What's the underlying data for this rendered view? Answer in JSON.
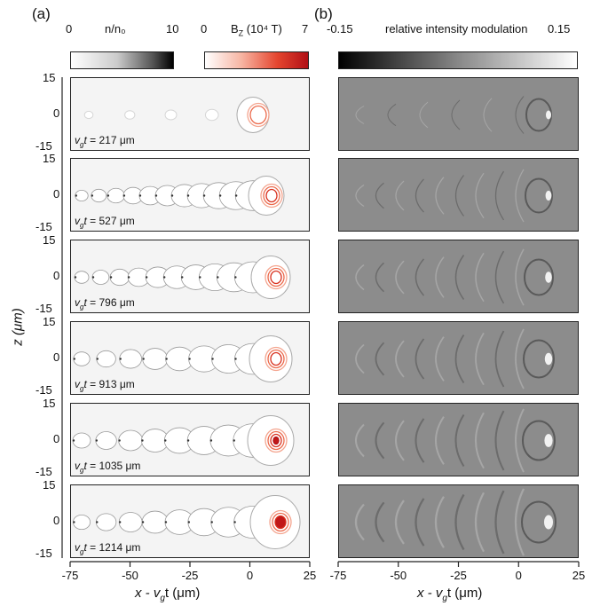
{
  "panel_a_letter": "(a)",
  "panel_b_letter": "(b)",
  "colorbar_density": {
    "min": "0",
    "label": "n/n₀",
    "max": "10"
  },
  "colorbar_bfield": {
    "min": "0",
    "label_main": "B",
    "label_sub": "Z",
    "label_unit": " (10⁴ T)",
    "max": "7"
  },
  "colorbar_intensity": {
    "min": "-0.15",
    "label": "relative intensity modulation",
    "max": "0.15"
  },
  "y_axis": {
    "label": "z (μm)",
    "ticks": [
      "15",
      "0",
      "-15"
    ]
  },
  "x_axis": {
    "label_left_a": "x - v",
    "label_sub": "g",
    "label_right": "t (μm)",
    "ticks": [
      "-75",
      "-50",
      "-25",
      "0",
      "25"
    ]
  },
  "rows": [
    {
      "annotation_prefix": "v",
      "annotation_sub": "g",
      "annotation_t": "t",
      "annotation_value": " = 217 μm"
    },
    {
      "annotation_prefix": "v",
      "annotation_sub": "g",
      "annotation_t": "t",
      "annotation_value": " = 527 μm"
    },
    {
      "annotation_prefix": "v",
      "annotation_sub": "g",
      "annotation_t": "t",
      "annotation_value": " = 796 μm"
    },
    {
      "annotation_prefix": "v",
      "annotation_sub": "g",
      "annotation_t": "t",
      "annotation_value": " = 913 μm"
    },
    {
      "annotation_prefix": "v",
      "annotation_sub": "g",
      "annotation_t": "t",
      "annotation_value": " = 1035 μm"
    },
    {
      "annotation_prefix": "v",
      "annotation_sub": "g",
      "annotation_t": "t",
      "annotation_value": " = 1214 μm"
    }
  ],
  "chart_data": {
    "type": "heatmap",
    "x_range": [
      -75,
      25
    ],
    "z_range": [
      -15,
      15
    ],
    "propagation_distance_um": [
      217,
      527,
      796,
      913,
      1035,
      1214
    ],
    "density_colorbar_range": [
      0,
      10
    ],
    "bfield_colorbar_range": [
      0,
      7
    ],
    "intensity_colorbar_range": [
      -0.15,
      0.15
    ]
  }
}
